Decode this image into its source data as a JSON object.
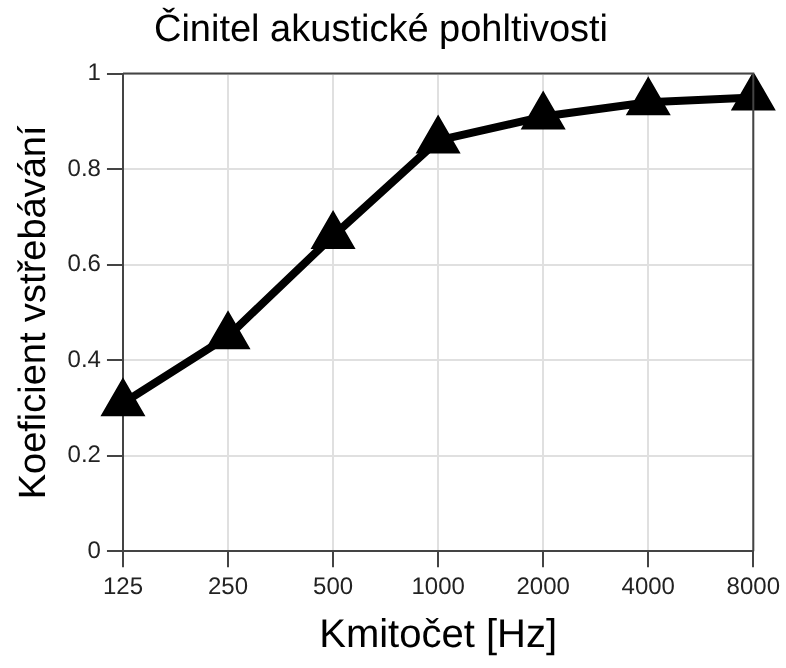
{
  "chart_data": {
    "type": "line",
    "title": "Činitel akustické pohltivosti",
    "xlabel": "Kmitočet [Hz]",
    "ylabel": "Koeficient vstřebávání",
    "categories": [
      "125",
      "250",
      "500",
      "1000",
      "2000",
      "4000",
      "8000"
    ],
    "series": [
      {
        "color": "#000000",
        "values": [
          0.31,
          0.45,
          0.66,
          0.86,
          0.91,
          0.94,
          0.95
        ]
      }
    ],
    "ylim": [
      0,
      1
    ],
    "yticks": [
      0,
      0.2,
      0.4,
      0.6,
      0.8,
      1
    ],
    "grid": true,
    "legend": false,
    "marker": "triangle",
    "line_style": "solid"
  }
}
